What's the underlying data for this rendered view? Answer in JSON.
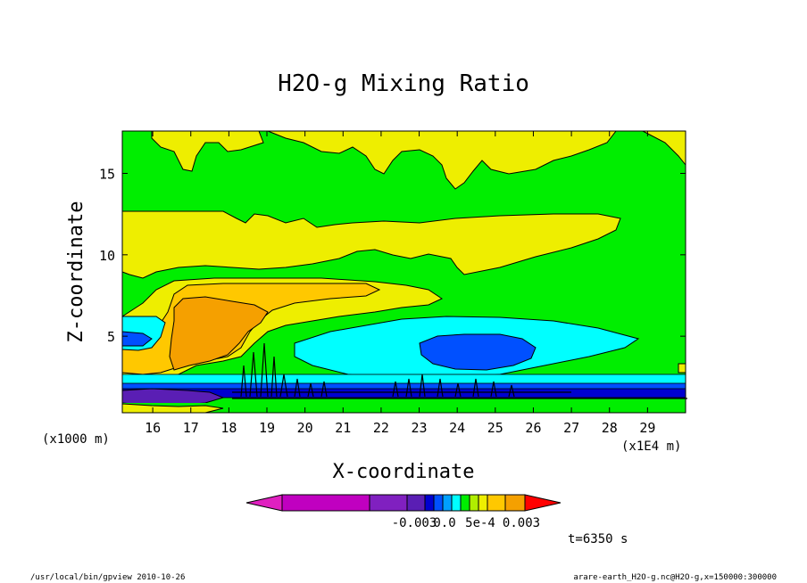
{
  "chart_data": {
    "type": "heatmap",
    "title": "H2O-g Mixing Ratio",
    "xlabel": "X-coordinate",
    "ylabel": "Z-coordinate",
    "x_unit_label": "(x1E4 m)",
    "y_unit_label": "(x1000 m)",
    "xlim": [
      15.2,
      30.0
    ],
    "ylim": [
      0.3,
      17.6
    ],
    "x_ticks": [
      "16",
      "17",
      "18",
      "19",
      "20",
      "21",
      "22",
      "23",
      "24",
      "25",
      "26",
      "27",
      "28",
      "29"
    ],
    "y_ticks": [
      "5",
      "10",
      "15"
    ],
    "colorbar_labels": [
      "-0.003",
      "0.0",
      "5e-4",
      "0.003"
    ],
    "time_label": "t=6350 s",
    "footer_left": "/usr/local/bin/gpview  2010-10-26",
    "footer_right": "arare-earth_H2O-g.nc@H2O-g,x=150000:300000",
    "colors": {
      "background_green": "#00ee00",
      "yellow": "#eeee00",
      "light_orange": "#ffc800",
      "orange": "#f5a000",
      "cyan": "#00ffff",
      "blue": "#0050ff",
      "deep_blue": "#0000d0",
      "purple": "#5a1eb4",
      "magenta": "#c000c0",
      "red": "#ff0000"
    }
  }
}
